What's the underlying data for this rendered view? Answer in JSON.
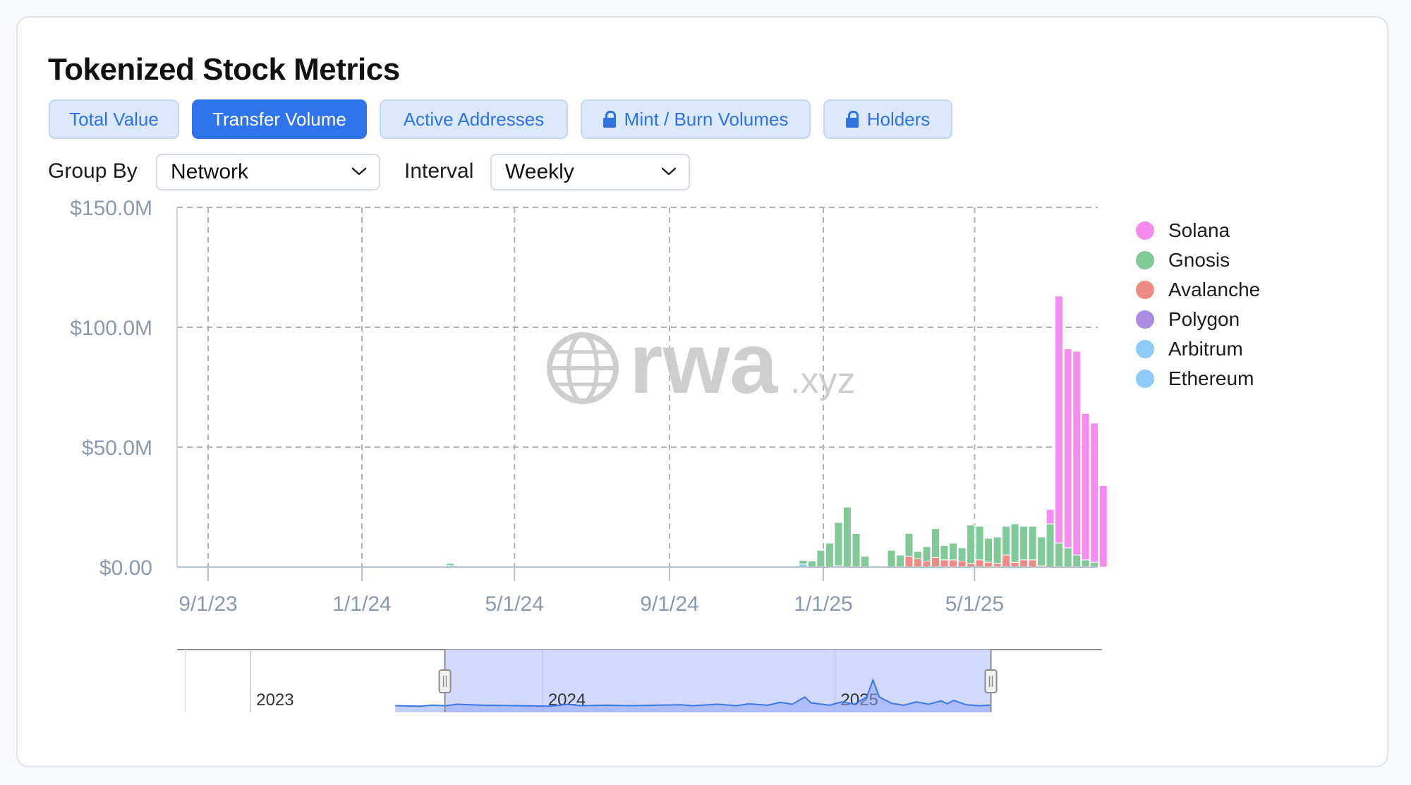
{
  "title": "Tokenized Stock Metrics",
  "tabs": [
    {
      "label": "Total Value",
      "active": false,
      "locked": false
    },
    {
      "label": "Transfer Volume",
      "active": true,
      "locked": false
    },
    {
      "label": "Active Addresses",
      "active": false,
      "locked": false
    },
    {
      "label": "Mint / Burn Volumes",
      "active": false,
      "locked": true
    },
    {
      "label": "Holders",
      "active": false,
      "locked": true
    }
  ],
  "controls": {
    "group_by_label": "Group By",
    "group_by_value": "Network",
    "interval_label": "Interval",
    "interval_value": "Weekly"
  },
  "watermark": {
    "main": "rwa",
    "suffix": ".xyz"
  },
  "colors": {
    "accent": "#2f74eb",
    "Solana": "#f58cf0",
    "Gnosis": "#7fca96",
    "Avalanche": "#f08a86",
    "Polygon": "#ab8be3",
    "Arbitrum": "#8ccaf7",
    "Ethereum": "#8ccaf7",
    "navigator": "#d3d9fb",
    "navigator_line": "#3a78e8"
  },
  "legend": [
    "Solana",
    "Gnosis",
    "Avalanche",
    "Polygon",
    "Arbitrum",
    "Ethereum"
  ],
  "navigator": {
    "year_labels": [
      "2023",
      "2024",
      "2025"
    ],
    "selection": [
      "9/1/23",
      "7/15/25"
    ]
  },
  "chart_data": {
    "type": "bar",
    "stacked": true,
    "x_type": "date",
    "x_ticks": [
      "9/1/23",
      "1/1/24",
      "5/1/24",
      "9/1/24",
      "1/1/25",
      "5/1/25"
    ],
    "y_ticks": [
      "$0.00",
      "$50.0M",
      "$100.0M",
      "$150.0M"
    ],
    "ylim": [
      0,
      150
    ],
    "y_unit": "$M",
    "grid": true,
    "legend_position": "right",
    "series": [
      {
        "name": "Ethereum",
        "points": [
          [
            "2024-03-11",
            0.7
          ],
          [
            "2024-12-16",
            1.2
          ],
          [
            "2025-01-13",
            0.6
          ]
        ]
      },
      {
        "name": "Arbitrum",
        "points": []
      },
      {
        "name": "Polygon",
        "points": []
      },
      {
        "name": "Avalanche",
        "points": [
          [
            "2025-03-10",
            4.5
          ],
          [
            "2025-03-17",
            3.5
          ],
          [
            "2025-03-24",
            2.5
          ],
          [
            "2025-03-31",
            4
          ],
          [
            "2025-04-07",
            3
          ],
          [
            "2025-04-14",
            3
          ],
          [
            "2025-04-21",
            2.5
          ],
          [
            "2025-04-28",
            1.5
          ],
          [
            "2025-05-05",
            3
          ],
          [
            "2025-05-12",
            2
          ],
          [
            "2025-05-19",
            1.5
          ],
          [
            "2025-05-26",
            5
          ],
          [
            "2025-06-02",
            2
          ],
          [
            "2025-06-09",
            3
          ],
          [
            "2025-06-16",
            3
          ],
          [
            "2025-06-23",
            0.5
          ]
        ]
      },
      {
        "name": "Gnosis",
        "points": [
          [
            "2024-03-11",
            0.8
          ],
          [
            "2024-12-16",
            1.6
          ],
          [
            "2024-12-23",
            2.5
          ],
          [
            "2024-12-30",
            7
          ],
          [
            "2025-01-06",
            10
          ],
          [
            "2025-01-13",
            18
          ],
          [
            "2025-01-20",
            25
          ],
          [
            "2025-01-27",
            14
          ],
          [
            "2025-02-03",
            4.5
          ],
          [
            "2025-02-10",
            0.5
          ],
          [
            "2025-02-24",
            7
          ],
          [
            "2025-03-03",
            5
          ],
          [
            "2025-03-10",
            9.5
          ],
          [
            "2025-03-17",
            3
          ],
          [
            "2025-03-24",
            6
          ],
          [
            "2025-03-31",
            12
          ],
          [
            "2025-04-07",
            6
          ],
          [
            "2025-04-14",
            7
          ],
          [
            "2025-04-21",
            5.5
          ],
          [
            "2025-04-28",
            16
          ],
          [
            "2025-05-05",
            14
          ],
          [
            "2025-05-12",
            10
          ],
          [
            "2025-05-19",
            11
          ],
          [
            "2025-05-26",
            12
          ],
          [
            "2025-06-02",
            16
          ],
          [
            "2025-06-09",
            14
          ],
          [
            "2025-06-16",
            14
          ],
          [
            "2025-06-23",
            12
          ],
          [
            "2025-06-30",
            18
          ],
          [
            "2025-07-07",
            10
          ],
          [
            "2025-07-14",
            8
          ],
          [
            "2025-07-21",
            5
          ],
          [
            "2025-07-28",
            3
          ],
          [
            "2025-08-04",
            2
          ]
        ]
      },
      {
        "name": "Solana",
        "points": [
          [
            "2025-06-30",
            6
          ],
          [
            "2025-07-07",
            103
          ],
          [
            "2025-07-14",
            83
          ],
          [
            "2025-07-21",
            85
          ],
          [
            "2025-07-28",
            61
          ],
          [
            "2025-08-04",
            58
          ],
          [
            "2025-08-11",
            34
          ]
        ]
      }
    ]
  }
}
